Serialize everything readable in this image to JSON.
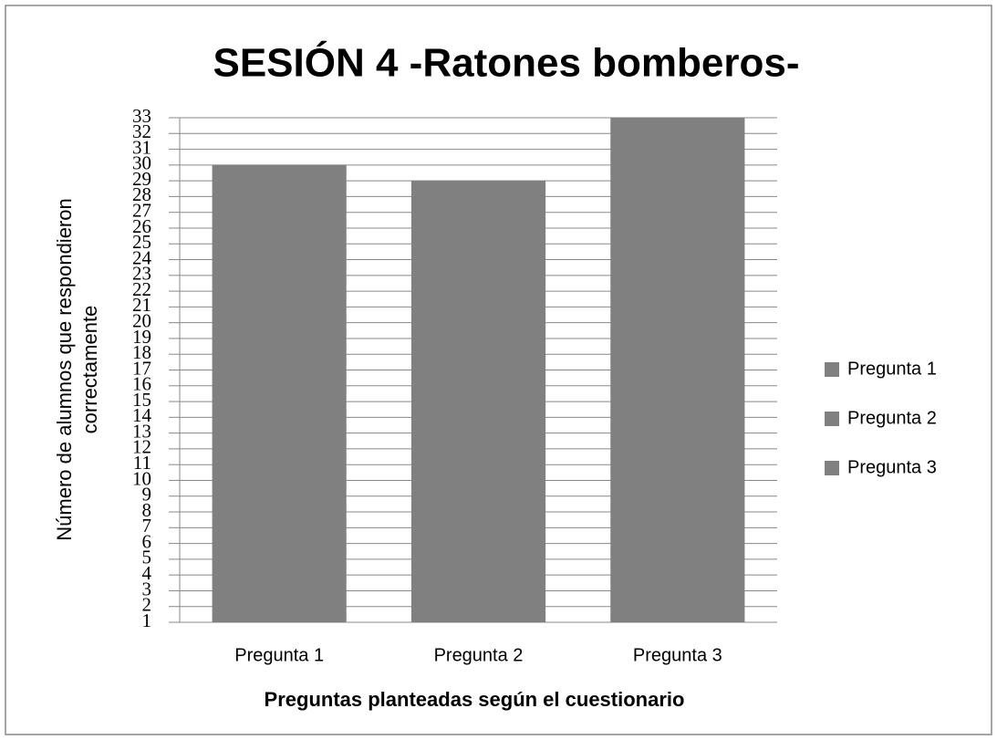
{
  "chart_data": {
    "type": "bar",
    "title": "SESIÓN 4 -Ratones bomberos-",
    "categories": [
      "Pregunta 1",
      "Pregunta 2",
      "Pregunta 3"
    ],
    "values": [
      30,
      29,
      33
    ],
    "color": "#808080",
    "x_label": "Preguntas planteadas según el cuestionario",
    "y_label": [
      "Número de alumnos que respondieron",
      "correctamente"
    ],
    "ylim": [
      1,
      33
    ],
    "yticks": [
      1,
      2,
      3,
      4,
      5,
      6,
      7,
      8,
      9,
      10,
      11,
      12,
      13,
      14,
      15,
      16,
      17,
      18,
      19,
      20,
      21,
      22,
      23,
      24,
      25,
      26,
      27,
      28,
      29,
      30,
      31,
      32,
      33
    ],
    "grid": true,
    "legend": "right"
  }
}
